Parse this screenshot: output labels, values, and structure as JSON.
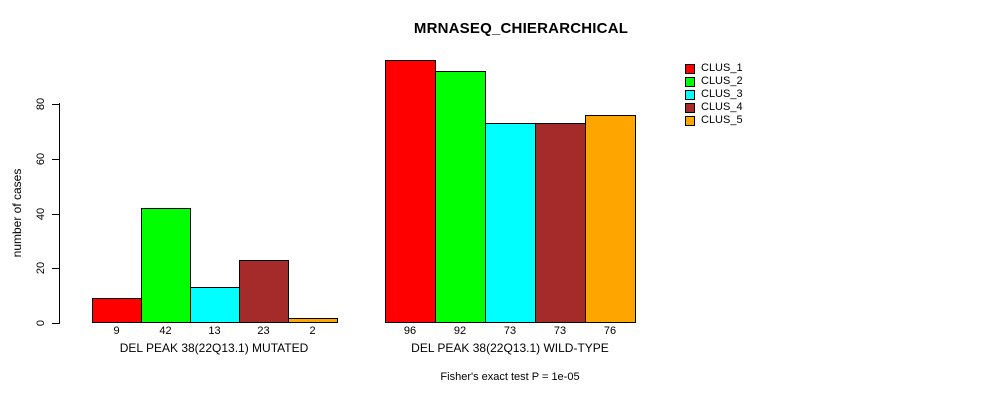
{
  "chart_data": {
    "type": "bar",
    "title": "MRNASEQ_CHIERARCHICAL",
    "ylabel": "number of cases",
    "yticks": [
      0,
      20,
      40,
      60,
      80
    ],
    "axis_range": [
      0,
      80
    ],
    "grid": false,
    "legend_position": "right",
    "categories": [
      "CLUS_1",
      "CLUS_2",
      "CLUS_3",
      "CLUS_4",
      "CLUS_5"
    ],
    "legend": [
      {
        "label": "CLUS_1",
        "color": "#ff0000"
      },
      {
        "label": "CLUS_2",
        "color": "#00ff00"
      },
      {
        "label": "CLUS_3",
        "color": "#00ffff"
      },
      {
        "label": "CLUS_4",
        "color": "#a52a2a"
      },
      {
        "label": "CLUS_5",
        "color": "#ffa500"
      }
    ],
    "groups": [
      {
        "label": "DEL PEAK 38(22Q13.1) MUTATED",
        "values": [
          9,
          42,
          13,
          23,
          2
        ]
      },
      {
        "label": "DEL PEAK 38(22Q13.1) WILD-TYPE",
        "values": [
          96,
          92,
          73,
          73,
          76
        ]
      }
    ],
    "bar_value_labels": true,
    "annotation": "Fisher's exact test P = 1e-05"
  }
}
